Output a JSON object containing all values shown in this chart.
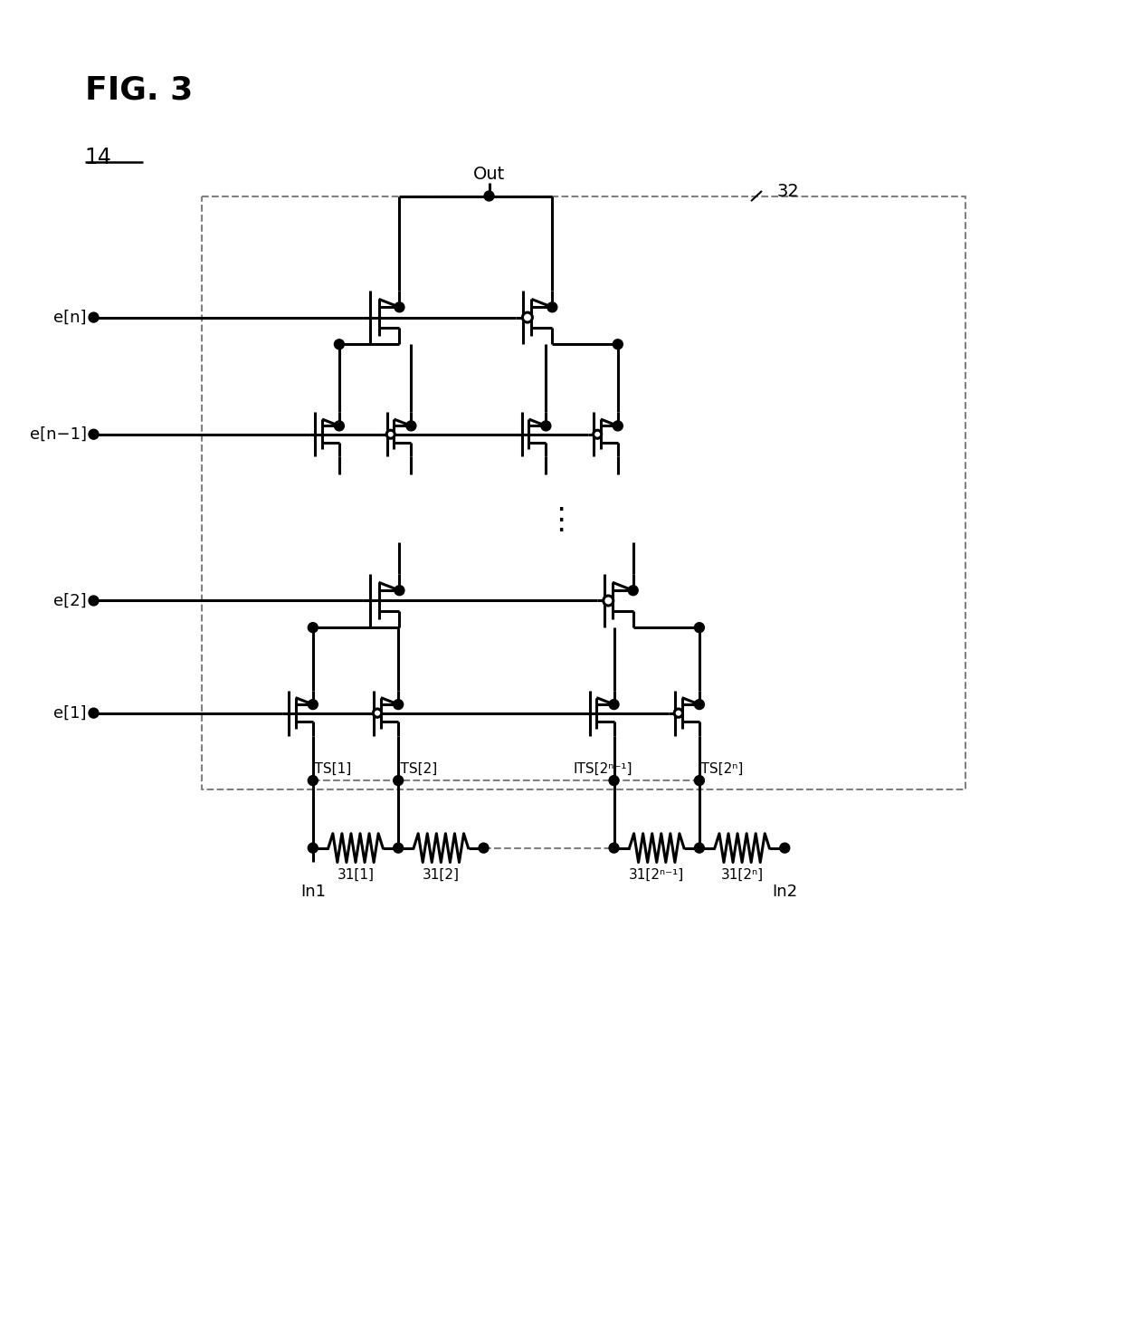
{
  "fig_label": "FIG. 3",
  "block_label": "14",
  "block_label2": "32",
  "background_color": "#ffffff",
  "line_color": "#000000",
  "dashed_color": "#808080"
}
